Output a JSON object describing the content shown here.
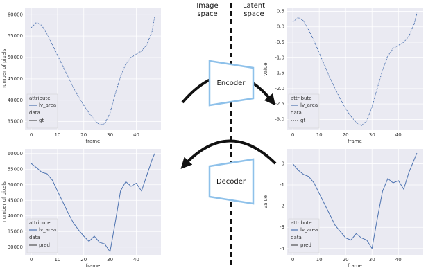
{
  "chart_data": [
    {
      "type": "line",
      "xlabel": "frame",
      "ylabel": "number of pixels",
      "grid": true,
      "line_style": "dotted",
      "x": [
        0,
        2,
        4,
        6,
        8,
        10,
        12,
        14,
        16,
        18,
        20,
        22,
        24,
        26,
        28,
        30,
        32,
        34,
        36,
        38,
        40,
        42,
        44,
        46,
        47
      ],
      "series": [
        {
          "name": "lv_area",
          "color": "#4c72b0",
          "values": [
            57000,
            58200,
            57500,
            55500,
            53000,
            50500,
            48000,
            45500,
            43000,
            40800,
            38800,
            37000,
            35500,
            34200,
            34500,
            37000,
            41500,
            45500,
            48500,
            50000,
            50800,
            51500,
            53000,
            56000,
            59500
          ]
        }
      ],
      "legend_title": "attribute",
      "style_title": "data",
      "style_name": "gt",
      "xlim": [
        -2.4,
        49.4
      ],
      "ylim": [
        33000,
        61500
      ],
      "xticks": [
        0,
        10,
        20,
        30,
        40
      ],
      "yticks": [
        35000,
        40000,
        45000,
        50000,
        55000,
        60000
      ]
    },
    {
      "type": "line",
      "xlabel": "frame",
      "ylabel": "value",
      "grid": true,
      "line_style": "dotted",
      "x": [
        0,
        2,
        4,
        6,
        8,
        10,
        12,
        14,
        16,
        18,
        20,
        22,
        24,
        26,
        28,
        30,
        32,
        34,
        36,
        38,
        40,
        42,
        44,
        46,
        47
      ],
      "series": [
        {
          "name": "lv_area",
          "color": "#4c72b0",
          "values": [
            0.15,
            0.3,
            0.2,
            -0.1,
            -0.45,
            -0.85,
            -1.25,
            -1.65,
            -2.0,
            -2.35,
            -2.65,
            -2.9,
            -3.1,
            -3.2,
            -3.05,
            -2.6,
            -2.0,
            -1.4,
            -0.95,
            -0.7,
            -0.6,
            -0.5,
            -0.3,
            0.1,
            0.45
          ]
        }
      ],
      "legend_title": "attribute",
      "style_title": "data",
      "style_name": "gt",
      "xlim": [
        -2.4,
        49.4
      ],
      "ylim": [
        -3.35,
        0.6
      ],
      "xticks": [
        0,
        10,
        20,
        30,
        40
      ],
      "yticks": [
        {
          "value": -3,
          "label": "-3.0"
        },
        -2.5,
        {
          "value": -2,
          "label": "-2.0"
        },
        -1.5,
        {
          "value": -1,
          "label": "-1.0"
        },
        -0.5,
        {
          "value": 0,
          "label": "0.0"
        },
        0.5
      ]
    },
    {
      "type": "line",
      "xlabel": "frame",
      "ylabel": "number of pixels",
      "grid": true,
      "line_style": "solid",
      "x": [
        0,
        2,
        4,
        6,
        8,
        10,
        12,
        14,
        16,
        18,
        20,
        22,
        24,
        26,
        28,
        30,
        32,
        34,
        36,
        38,
        40,
        42,
        44,
        46,
        47
      ],
      "series": [
        {
          "name": "lv_area",
          "color": "#4c72b0",
          "values": [
            56800,
            55500,
            54000,
            53500,
            51500,
            48000,
            44500,
            41000,
            37800,
            35500,
            33500,
            31800,
            33500,
            31500,
            31000,
            28500,
            38000,
            48000,
            51000,
            49500,
            50500,
            48000,
            53000,
            58000,
            60000
          ]
        }
      ],
      "legend_title": "attribute",
      "style_title": "data",
      "style_name": "pred",
      "xlim": [
        -2.4,
        49.4
      ],
      "ylim": [
        27500,
        61500
      ],
      "xticks": [
        0,
        10,
        20,
        30,
        40
      ],
      "yticks": [
        30000,
        35000,
        40000,
        45000,
        50000,
        55000,
        60000
      ]
    },
    {
      "type": "line",
      "xlabel": "frame",
      "ylabel": "value",
      "grid": true,
      "line_style": "solid",
      "x": [
        0,
        2,
        4,
        6,
        8,
        10,
        12,
        14,
        16,
        18,
        20,
        22,
        24,
        26,
        28,
        30,
        32,
        34,
        36,
        38,
        40,
        42,
        44,
        46,
        47
      ],
      "series": [
        {
          "name": "lv_area",
          "color": "#4c72b0",
          "values": [
            0.0,
            -0.3,
            -0.5,
            -0.6,
            -0.9,
            -1.4,
            -1.9,
            -2.4,
            -2.9,
            -3.2,
            -3.5,
            -3.6,
            -3.3,
            -3.5,
            -3.6,
            -4.0,
            -2.6,
            -1.3,
            -0.7,
            -0.9,
            -0.8,
            -1.2,
            -0.4,
            0.2,
            0.5
          ]
        }
      ],
      "legend_title": "attribute",
      "style_title": "data",
      "style_name": "pred",
      "xlim": [
        -2.4,
        49.4
      ],
      "ylim": [
        -4.3,
        0.7
      ],
      "xticks": [
        0,
        10,
        20,
        30,
        40
      ],
      "yticks": [
        -4,
        -3,
        -2,
        -1,
        0
      ]
    }
  ],
  "diagram": {
    "image_space": [
      "Image",
      "space"
    ],
    "latent_space": [
      "Latent",
      "space"
    ],
    "encoder": "Encoder",
    "decoder": "Decoder"
  }
}
